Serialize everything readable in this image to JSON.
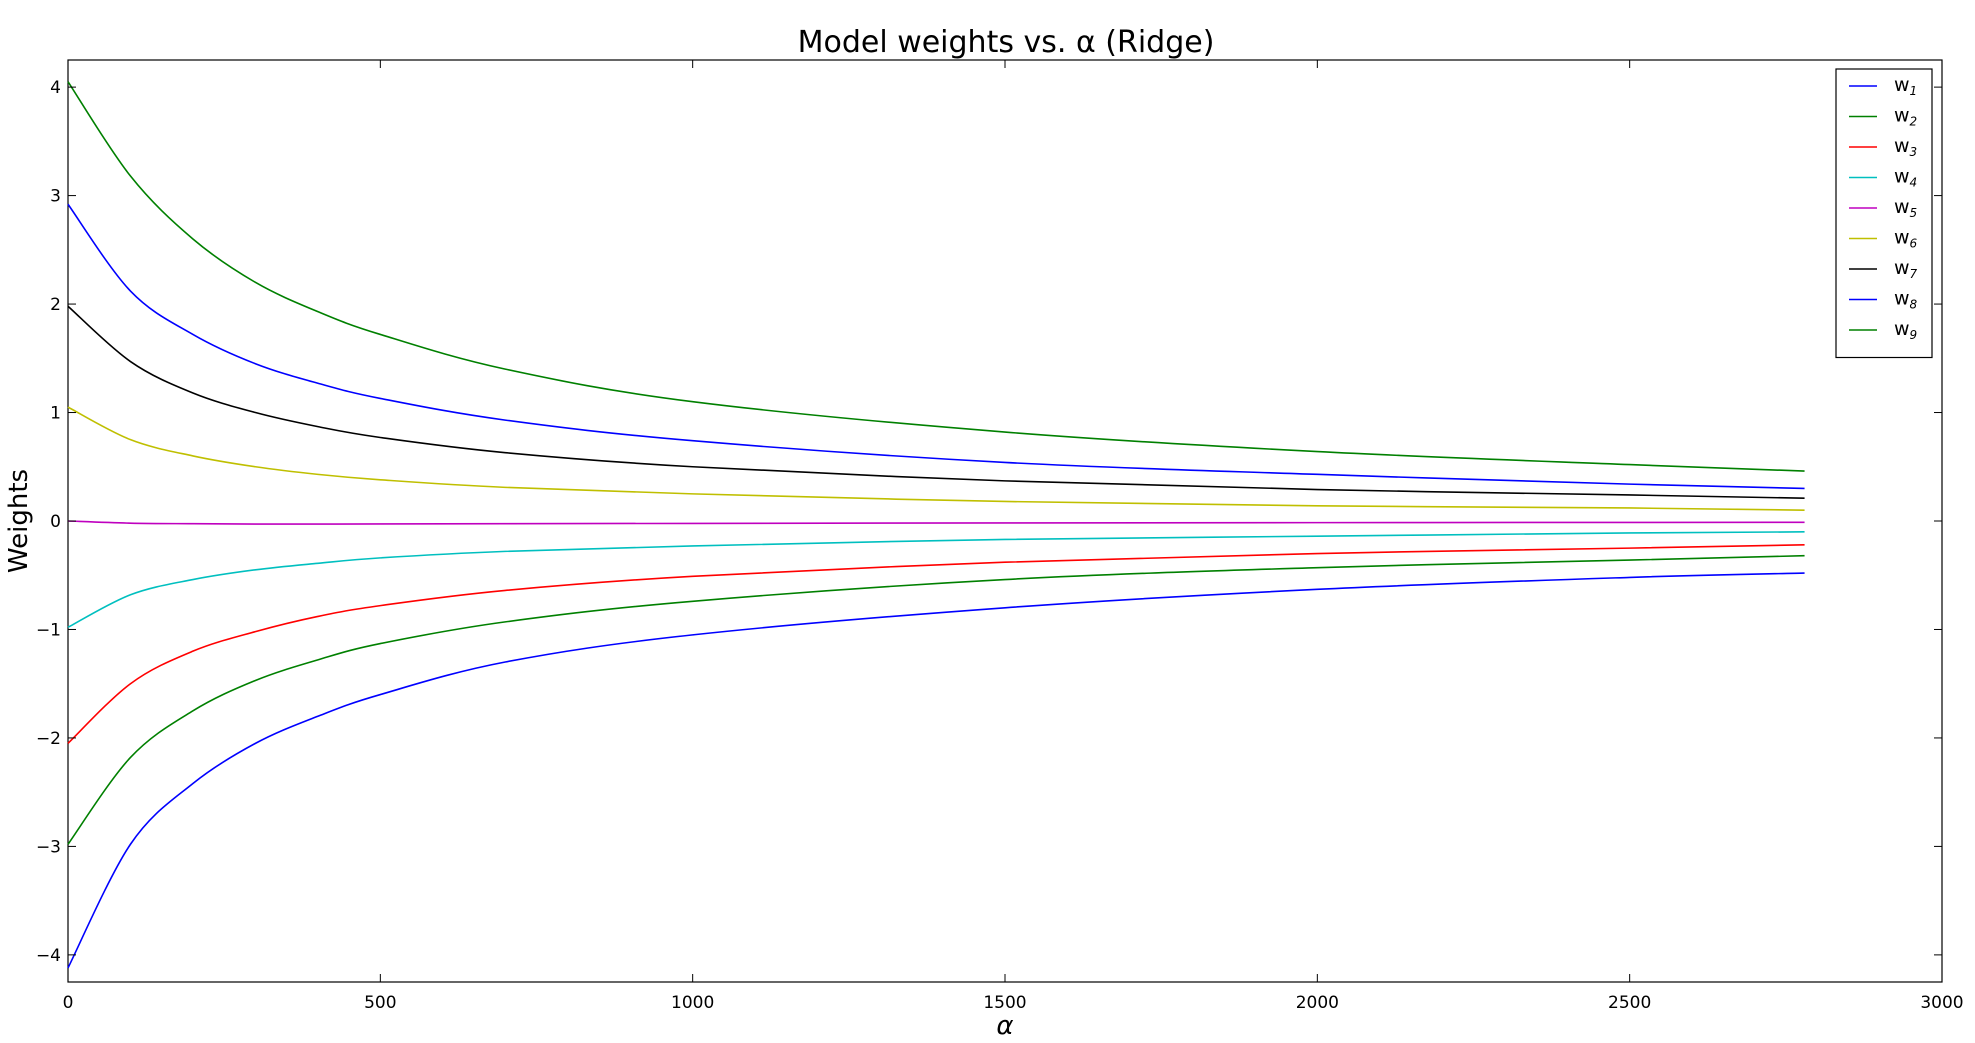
{
  "chart_data": {
    "type": "line",
    "title": "Model weights vs. α (Ridge)",
    "xlabel": "α",
    "ylabel": "Weights",
    "xlim": [
      0,
      3000
    ],
    "ylim": [
      -4.25,
      4.25
    ],
    "xticks": [
      0,
      500,
      1000,
      1500,
      2000,
      2500,
      3000
    ],
    "yticks": [
      -4,
      -3,
      -2,
      -1,
      0,
      1,
      2,
      3,
      4
    ],
    "xtick_labels": [
      "0",
      "500",
      "1000",
      "1500",
      "2000",
      "2500",
      "3000"
    ],
    "ytick_labels": [
      "−4",
      "−3",
      "−2",
      "−1",
      "0",
      "1",
      "2",
      "3",
      "4"
    ],
    "grid": false,
    "legend_position": "top-right",
    "x": [
      0,
      100,
      200,
      300,
      400,
      500,
      700,
      1000,
      1500,
      2000,
      2500,
      2780
    ],
    "series": [
      {
        "name": "w",
        "sub": "1",
        "color": "#0000ff",
        "values": [
          2.92,
          2.12,
          1.72,
          1.45,
          1.27,
          1.13,
          0.93,
          0.74,
          0.54,
          0.43,
          0.34,
          0.3
        ]
      },
      {
        "name": "w",
        "sub": "2",
        "color": "#008000",
        "values": [
          4.05,
          3.18,
          2.6,
          2.2,
          1.93,
          1.72,
          1.4,
          1.1,
          0.82,
          0.64,
          0.52,
          0.46
        ]
      },
      {
        "name": "w",
        "sub": "3",
        "color": "#ff0000",
        "values": [
          -2.05,
          -1.5,
          -1.2,
          -1.02,
          -0.88,
          -0.78,
          -0.64,
          -0.51,
          -0.38,
          -0.3,
          -0.25,
          -0.22
        ]
      },
      {
        "name": "w",
        "sub": "4",
        "color": "#00bfbf",
        "values": [
          -0.98,
          -0.68,
          -0.54,
          -0.45,
          -0.39,
          -0.34,
          -0.28,
          -0.23,
          -0.17,
          -0.14,
          -0.11,
          -0.1
        ]
      },
      {
        "name": "w",
        "sub": "5",
        "color": "#bf00bf",
        "values": [
          0.0,
          -0.02,
          -0.025,
          -0.028,
          -0.028,
          -0.027,
          -0.025,
          -0.022,
          -0.018,
          -0.015,
          -0.013,
          -0.012
        ]
      },
      {
        "name": "w",
        "sub": "6",
        "color": "#bfbf00",
        "values": [
          1.05,
          0.75,
          0.6,
          0.5,
          0.43,
          0.38,
          0.31,
          0.25,
          0.18,
          0.14,
          0.12,
          0.1
        ]
      },
      {
        "name": "w",
        "sub": "7",
        "color": "#000000",
        "values": [
          1.98,
          1.47,
          1.18,
          1.0,
          0.87,
          0.77,
          0.63,
          0.5,
          0.37,
          0.29,
          0.24,
          0.21
        ]
      },
      {
        "name": "w",
        "sub": "8",
        "color": "#0000ff",
        "values": [
          -4.12,
          -2.98,
          -2.42,
          -2.05,
          -1.8,
          -1.6,
          -1.3,
          -1.05,
          -0.8,
          -0.63,
          -0.52,
          -0.48
        ]
      },
      {
        "name": "w",
        "sub": "9",
        "color": "#008000",
        "values": [
          -2.98,
          -2.18,
          -1.75,
          -1.47,
          -1.28,
          -1.13,
          -0.93,
          -0.74,
          -0.54,
          -0.43,
          -0.36,
          -0.32
        ]
      }
    ]
  }
}
